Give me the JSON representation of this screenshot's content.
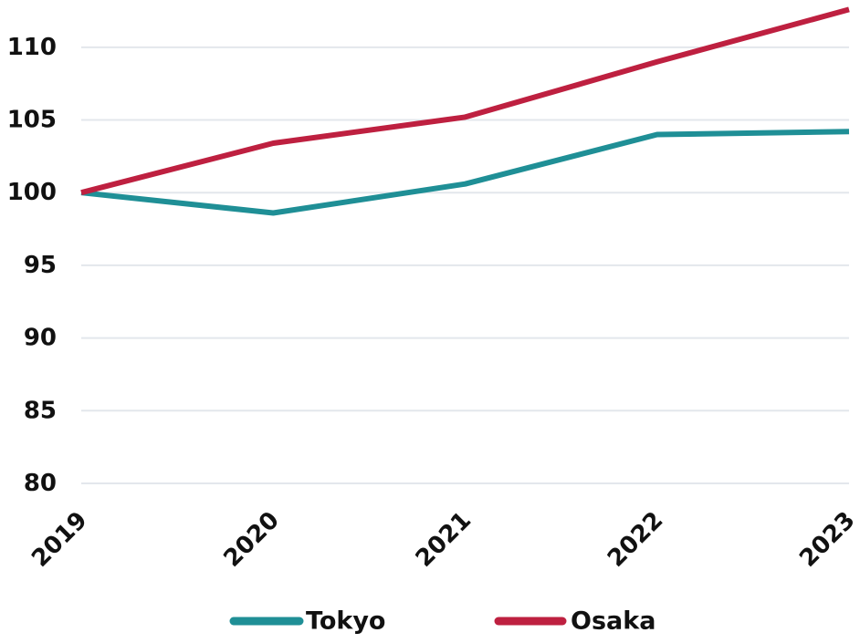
{
  "chart_data": {
    "type": "line",
    "title": "",
    "xlabel": "",
    "ylabel": "",
    "categories": [
      "2019",
      "2020",
      "2021",
      "2022",
      "2023"
    ],
    "y_ticks": [
      "80",
      "85",
      "90",
      "95",
      "100",
      "105",
      "110"
    ],
    "ylim": [
      80,
      112.5
    ],
    "grid": true,
    "legend_position": "bottom-center",
    "series": [
      {
        "name": "Tokyo",
        "color": "#1f8f96",
        "values": [
          100,
          98.6,
          100.6,
          104.0,
          104.2
        ]
      },
      {
        "name": "Osaka",
        "color": "#be2040",
        "values": [
          100,
          103.4,
          105.2,
          109.0,
          112.6
        ]
      }
    ]
  }
}
